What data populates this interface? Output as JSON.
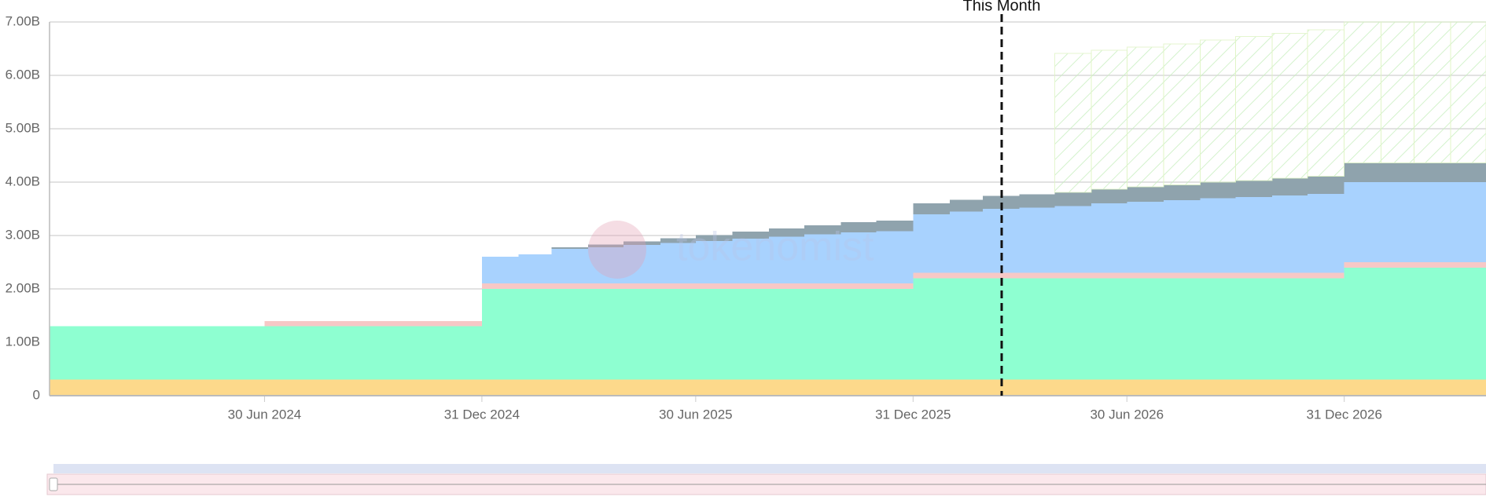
{
  "chart_data": {
    "type": "stacked_step_area",
    "x": [
      "2023-12-31",
      "2024-01-31",
      "2024-02-29",
      "2024-03-31",
      "2024-04-30",
      "2024-05-31",
      "2024-06-30",
      "2024-07-31",
      "2024-08-31",
      "2024-09-30",
      "2024-10-31",
      "2024-11-30",
      "2024-12-31",
      "2025-01-31",
      "2025-02-28",
      "2025-03-31",
      "2025-04-30",
      "2025-05-31",
      "2025-06-30",
      "2025-07-31",
      "2025-08-31",
      "2025-09-30",
      "2025-10-31",
      "2025-11-30",
      "2025-12-31",
      "2026-01-31",
      "2026-02-28",
      "2026-03-31",
      "2026-04-30",
      "2026-05-31",
      "2026-06-30",
      "2026-07-31",
      "2026-08-31",
      "2026-09-30",
      "2026-10-31",
      "2026-11-30",
      "2026-12-31",
      "2027-01-31",
      "2027-02-28",
      "2027-03-31"
    ],
    "series": [
      {
        "color": "#fdd98b",
        "values": [
          0.3,
          0.3,
          0.3,
          0.3,
          0.3,
          0.3,
          0.3,
          0.3,
          0.3,
          0.3,
          0.3,
          0.3,
          0.3,
          0.3,
          0.3,
          0.3,
          0.3,
          0.3,
          0.3,
          0.3,
          0.3,
          0.3,
          0.3,
          0.3,
          0.3,
          0.3,
          0.3,
          0.3,
          0.3,
          0.3,
          0.3,
          0.3,
          0.3,
          0.3,
          0.3,
          0.3,
          0.3,
          0.3,
          0.3,
          0.3
        ]
      },
      {
        "color": "#8effd1",
        "values": [
          1.0,
          1.0,
          1.0,
          1.0,
          1.0,
          1.0,
          1.0,
          1.0,
          1.0,
          1.0,
          1.0,
          1.0,
          1.7,
          1.7,
          1.7,
          1.7,
          1.7,
          1.7,
          1.7,
          1.7,
          1.7,
          1.7,
          1.7,
          1.7,
          1.9,
          1.9,
          1.9,
          1.9,
          1.9,
          1.9,
          1.9,
          1.9,
          1.9,
          1.9,
          1.9,
          1.9,
          2.1,
          2.1,
          2.1,
          2.1
        ]
      },
      {
        "color": "#f7c8c6",
        "values": [
          0,
          0,
          0,
          0,
          0,
          0,
          0.1,
          0.1,
          0.1,
          0.1,
          0.1,
          0.1,
          0.1,
          0.1,
          0.1,
          0.1,
          0.1,
          0.1,
          0.1,
          0.1,
          0.1,
          0.1,
          0.1,
          0.1,
          0.1,
          0.1,
          0.1,
          0.1,
          0.1,
          0.1,
          0.1,
          0.1,
          0.1,
          0.1,
          0.1,
          0.1,
          0.1,
          0.1,
          0.1,
          0.1
        ]
      },
      {
        "color": "#a8d2fe",
        "values": [
          0,
          0,
          0,
          0,
          0,
          0,
          0,
          0,
          0,
          0,
          0,
          0,
          0.5,
          0.55,
          0.65,
          0.68,
          0.72,
          0.76,
          0.8,
          0.84,
          0.88,
          0.92,
          0.96,
          0.98,
          1.1,
          1.15,
          1.2,
          1.22,
          1.25,
          1.3,
          1.33,
          1.36,
          1.4,
          1.42,
          1.45,
          1.48,
          1.5,
          1.5,
          1.5,
          1.5
        ]
      },
      {
        "color": "#8fa3ad",
        "values": [
          0,
          0,
          0,
          0,
          0,
          0,
          0,
          0,
          0,
          0,
          0,
          0,
          0,
          0,
          0.03,
          0.05,
          0.07,
          0.09,
          0.11,
          0.13,
          0.15,
          0.17,
          0.19,
          0.2,
          0.2,
          0.22,
          0.24,
          0.25,
          0.26,
          0.27,
          0.28,
          0.29,
          0.3,
          0.31,
          0.32,
          0.33,
          0.36,
          0.36,
          0.36,
          0.36
        ]
      },
      {
        "color": "#e4f8d2",
        "values": [
          0,
          0,
          0,
          0,
          0,
          0,
          0,
          0,
          0,
          0,
          0,
          0,
          0,
          0,
          0,
          0,
          0,
          0,
          0,
          0,
          0,
          0,
          0,
          0,
          0,
          0,
          0,
          0,
          2.6,
          2.6,
          2.62,
          2.64,
          2.66,
          2.7,
          2.72,
          2.74,
          2.64,
          2.64,
          2.64,
          2.64
        ]
      }
    ],
    "xlim": [
      "2023-12-31",
      "2027-04-30"
    ],
    "xticks": [
      {
        "value": "2024-06-30",
        "label": "30 Jun 2024"
      },
      {
        "value": "2024-12-31",
        "label": "31 Dec 2024"
      },
      {
        "value": "2025-06-30",
        "label": "30 Jun 2025"
      },
      {
        "value": "2025-12-31",
        "label": "31 Dec 2025"
      },
      {
        "value": "2026-06-30",
        "label": "30 Jun 2026"
      },
      {
        "value": "2026-12-31",
        "label": "31 Dec 2026"
      }
    ],
    "ylim": [
      0,
      7
    ],
    "yticks": [
      0,
      {
        "value": 1,
        "label": "1.00B"
      },
      {
        "value": 2,
        "label": "2.00B"
      },
      {
        "value": 3,
        "label": "3.00B"
      },
      {
        "value": 4,
        "label": "4.00B"
      },
      {
        "value": 5,
        "label": "5.00B"
      },
      {
        "value": 6,
        "label": "6.00B"
      },
      {
        "value": 7,
        "label": "7.00B"
      }
    ],
    "grid": true,
    "marker": {
      "x": "2026-03-16",
      "label": "This Month"
    },
    "watermark": "tokenomist"
  }
}
